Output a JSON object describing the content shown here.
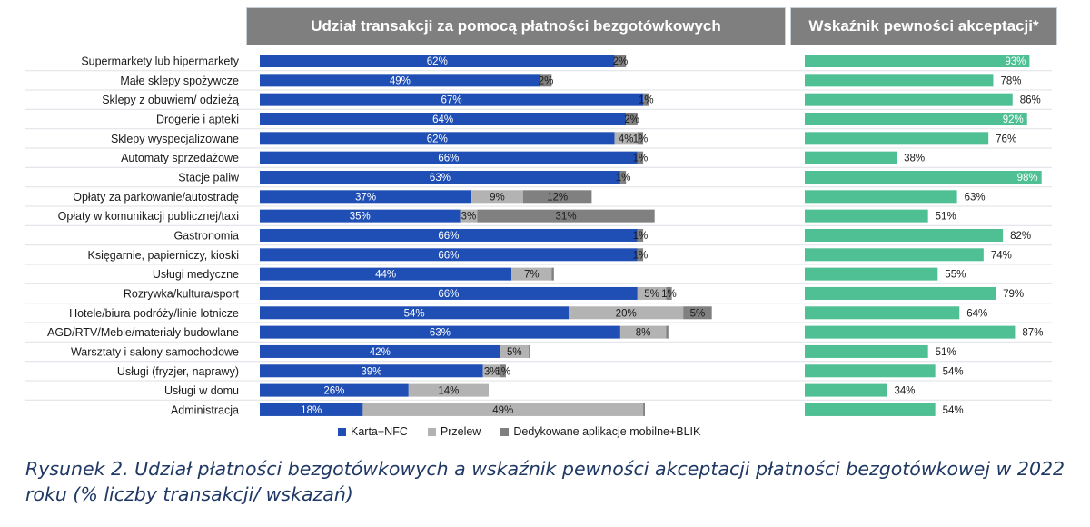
{
  "chart_data": [
    {
      "type": "bar",
      "orientation": "horizontal",
      "stacked": true,
      "title": "Udział transakcji za pomocą płatności bezgotówkowych",
      "categories": [
        "Supermarkety lub hipermarkety",
        "Małe sklepy spożywcze",
        "Sklepy z obuwiem/ odzieżą",
        "Drogerie i apteki",
        "Sklepy wyspecjalizowane",
        "Automaty sprzedażowe",
        "Stacje paliw",
        "Opłaty za parkowanie/autostradę",
        "Opłaty w komunikacji publicznej/taxi",
        "Gastronomia",
        "Księgarnie, papierniczy, kioski",
        "Usługi medyczne",
        "Rozrywka/kultura/sport",
        "Hotele/biura podróży/linie lotnicze",
        "AGD/RTV/Meble/materiały budowlane",
        "Warsztaty i salony samochodowe",
        "Usługi (fryzjer, naprawy)",
        "Usługi w domu",
        "Administracja"
      ],
      "series": [
        {
          "name": "Karta+NFC",
          "color": "#1f4eb4",
          "values": [
            62,
            49,
            67,
            64,
            62,
            66,
            63,
            37,
            35,
            66,
            66,
            44,
            66,
            54,
            63,
            42,
            39,
            26,
            18
          ],
          "labels": [
            "62%",
            "49%",
            "67%",
            "64%",
            "62%",
            "66%",
            "63%",
            "37%",
            "35%",
            "66%",
            "66%",
            "44%",
            "66%",
            "54%",
            "63%",
            "42%",
            "39%",
            "26%",
            "18%"
          ]
        },
        {
          "name": "Przelew",
          "color": "#b3b3b3",
          "values": [
            0,
            0,
            0,
            0,
            4,
            0,
            0,
            9,
            3,
            0,
            0,
            7,
            5,
            20,
            8,
            5,
            3,
            14,
            49
          ],
          "labels": [
            "",
            "",
            "",
            "",
            "4%",
            "",
            "",
            "9%",
            "3%",
            "",
            "",
            "7%",
            "5%",
            "20%",
            "8%",
            "5%",
            "3%",
            "14%",
            "49%"
          ]
        },
        {
          "name": "Dedykowane aplikacje mobilne+BLIK",
          "color": "#808080",
          "values": [
            2,
            2,
            1,
            2,
            1,
            1,
            1,
            12,
            31,
            1,
            1,
            0.4,
            1,
            5,
            0.4,
            0.3,
            1,
            0,
            0.3
          ],
          "labels": [
            "2%",
            "2%",
            "1%",
            "2%",
            "1%",
            "1%",
            "1%",
            "12%",
            "31%",
            "1%",
            "1%",
            "",
            "1%",
            "5%",
            "",
            "",
            "1%",
            "",
            ""
          ]
        }
      ],
      "xlim": [
        0,
        100
      ],
      "legend": "bottom"
    },
    {
      "type": "bar",
      "orientation": "horizontal",
      "title": "Wskaźnik pewności akceptacji*",
      "series": [
        {
          "name": "Wskaźnik pewności akceptacji",
          "color": "#4fbf94",
          "values": [
            93,
            78,
            86,
            92,
            76,
            38,
            98,
            63,
            51,
            82,
            74,
            55,
            79,
            64,
            87,
            51,
            54,
            34,
            54
          ],
          "labels": [
            "93%",
            "78%",
            "86%",
            "92%",
            "76%",
            "38%",
            "98%",
            "63%",
            "51%",
            "82%",
            "74%",
            "55%",
            "79%",
            "64%",
            "87%",
            "51%",
            "54%",
            "34%",
            "54%"
          ]
        }
      ],
      "xlim": [
        0,
        100
      ]
    }
  ],
  "headers": {
    "left": "Udział transakcji za pomocą płatności bezgotówkowych",
    "right": "Wskaźnik pewności akceptacji*"
  },
  "legend": {
    "items": [
      {
        "label": "Karta+NFC",
        "color": "#1f4eb4"
      },
      {
        "label": "Przelew",
        "color": "#b3b3b3"
      },
      {
        "label": "Dedykowane aplikacje mobilne+BLIK",
        "color": "#808080"
      }
    ]
  },
  "caption": "Rysunek 2. Udział płatności bezgotówkowych a wskaźnik pewności akceptacji płatności bezgotówkowej w 2022 roku (% liczby transakcji/ wskazań)"
}
